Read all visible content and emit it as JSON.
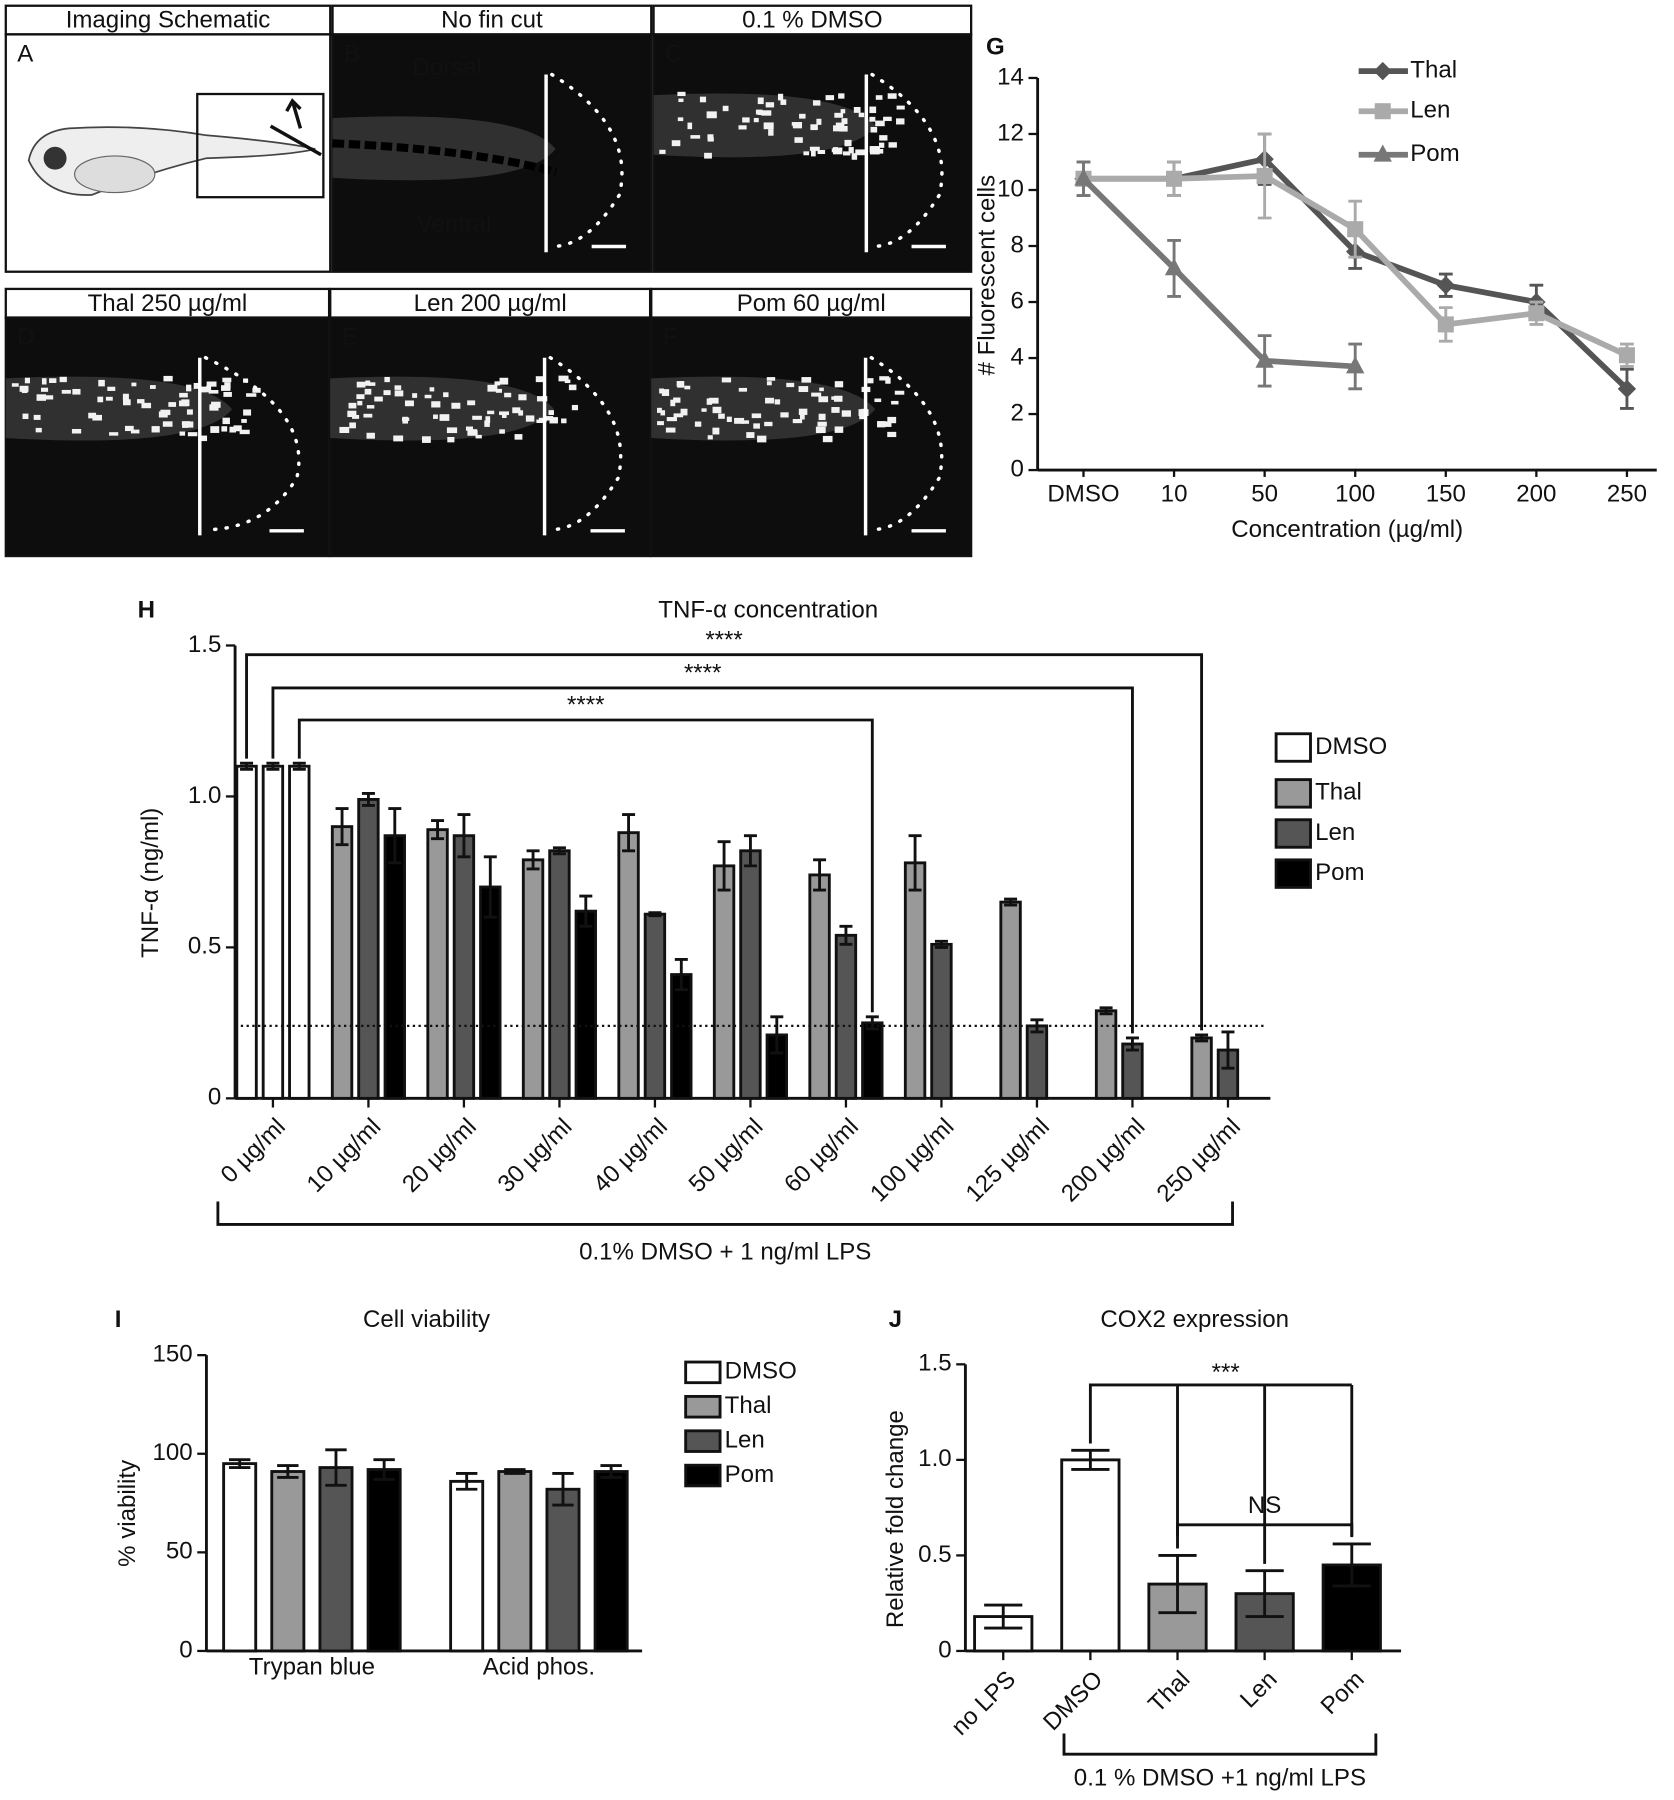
{
  "image_panels": [
    {
      "letter": "A",
      "title": "Imaging Schematic"
    },
    {
      "letter": "B",
      "title": "No fin cut",
      "labels": [
        "Dorsal",
        "Ventral"
      ]
    },
    {
      "letter": "C",
      "title": "0.1 % DMSO"
    },
    {
      "letter": "D",
      "title": "Thal 250 µg/ml"
    },
    {
      "letter": "E",
      "title": "Len 200 µg/ml"
    },
    {
      "letter": "F",
      "title": "Pom 60 µg/ml"
    }
  ],
  "chart_data": [
    {
      "type": "line",
      "panel": "G",
      "xlabel": "Concentration (µg/ml)",
      "ylabel": "# Fluorescent cells",
      "categories": [
        "DMSO",
        "10",
        "50",
        "100",
        "150",
        "200",
        "250"
      ],
      "ylim": [
        0,
        14
      ],
      "yticks": [
        0,
        2,
        4,
        6,
        8,
        10,
        12,
        14
      ],
      "series": [
        {
          "name": "Thal",
          "color": "#555555",
          "marker": "diamond",
          "values": [
            10.4,
            10.4,
            11.1,
            7.8,
            6.6,
            6.0,
            2.9
          ],
          "errors": [
            0.6,
            0.6,
            0.9,
            0.6,
            0.4,
            0.6,
            0.7
          ]
        },
        {
          "name": "Len",
          "color": "#aaaaaa",
          "marker": "square",
          "values": [
            10.4,
            10.4,
            10.5,
            8.6,
            5.2,
            5.6,
            4.1
          ],
          "errors": [
            0.6,
            0.6,
            1.5,
            1.0,
            0.6,
            0.4,
            0.4
          ]
        },
        {
          "name": "Pom",
          "color": "#777777",
          "marker": "triangle",
          "values": [
            10.4,
            7.2,
            3.9,
            3.7,
            null,
            null,
            null
          ],
          "errors": [
            0.6,
            1.0,
            0.9,
            0.8,
            null,
            null,
            null
          ]
        }
      ]
    },
    {
      "type": "bar",
      "panel": "H",
      "title": "TNF-α concentration",
      "ylabel": "TNF-α (ng/ml)",
      "categories": [
        "0 µg/ml",
        "10 µg/ml",
        "20 µg/ml",
        "30 µg/ml",
        "40 µg/ml",
        "50 µg/ml",
        "60 µg/ml",
        "100 µg/ml",
        "125 µg/ml",
        "200 µg/ml",
        "250 µg/ml"
      ],
      "group_label": "0.1% DMSO + 1 ng/ml LPS",
      "ylim": [
        0,
        1.5
      ],
      "yticks": [
        0,
        0.5,
        {
          "value": 1,
          "label": "1.0"
        },
        1.5
      ],
      "reference_line": 0.24,
      "comparisons": [
        {
          "label": "****"
        },
        {
          "label": "****"
        },
        {
          "label": "****"
        }
      ],
      "series": [
        {
          "name": "DMSO",
          "color": "#ffffff",
          "values": [
            1.1,
            null,
            null,
            null,
            null,
            null,
            null,
            null,
            null,
            null,
            null
          ],
          "errors": [
            0.01,
            null,
            null,
            null,
            null,
            null,
            null,
            null,
            null,
            null,
            null
          ]
        },
        {
          "name": "Thal",
          "color": "#999999",
          "values": [
            null,
            0.9,
            0.89,
            0.79,
            0.88,
            0.77,
            0.74,
            0.78,
            0.65,
            0.29,
            0.2
          ],
          "errors": [
            null,
            0.06,
            0.03,
            0.03,
            0.06,
            0.08,
            0.05,
            0.09,
            0.01,
            0.01,
            0.01
          ]
        },
        {
          "name": "Len",
          "color": "#555555",
          "values": [
            null,
            0.99,
            0.87,
            0.82,
            0.61,
            0.82,
            0.54,
            0.51,
            0.24,
            0.18,
            0.16
          ],
          "errors": [
            null,
            0.02,
            0.07,
            0.01,
            0.005,
            0.05,
            0.03,
            0.01,
            0.02,
            0.02,
            0.06
          ]
        },
        {
          "name": "Pom",
          "color": "#000000",
          "values": [
            null,
            0.87,
            0.7,
            0.62,
            0.41,
            0.21,
            0.25,
            null,
            null,
            null,
            null
          ],
          "errors": [
            null,
            0.09,
            0.1,
            0.05,
            0.05,
            0.06,
            0.02,
            null,
            null,
            null,
            null
          ]
        }
      ]
    },
    {
      "type": "bar",
      "panel": "I",
      "title": "Cell viability",
      "ylabel": "% viability",
      "categories": [
        "Trypan blue",
        "Acid phos."
      ],
      "ylim": [
        0,
        150
      ],
      "yticks": [
        0,
        50,
        100,
        150
      ],
      "series": [
        {
          "name": "DMSO",
          "color": "#ffffff",
          "values": [
            95,
            86
          ],
          "errors": [
            2,
            4
          ]
        },
        {
          "name": "Thal",
          "color": "#999999",
          "values": [
            91,
            91
          ],
          "errors": [
            3,
            1
          ]
        },
        {
          "name": "Len",
          "color": "#555555",
          "values": [
            93,
            82
          ],
          "errors": [
            9,
            8
          ]
        },
        {
          "name": "Pom",
          "color": "#000000",
          "values": [
            92,
            91
          ],
          "errors": [
            5,
            3
          ]
        }
      ]
    },
    {
      "type": "bar",
      "panel": "J",
      "title": "COX2 expression",
      "ylabel": "Relative fold change",
      "categories": [
        "no LPS",
        "DMSO",
        "Thal",
        "Len",
        "Pom"
      ],
      "values": [
        0.18,
        1.0,
        0.35,
        0.3,
        0.45
      ],
      "errors": [
        0.06,
        0.05,
        0.15,
        0.12,
        0.11
      ],
      "colors": [
        "#ffffff",
        "#ffffff",
        "#999999",
        "#555555",
        "#000000"
      ],
      "ylim": [
        0,
        1.5
      ],
      "yticks": [
        0,
        0.5,
        {
          "value": 1,
          "label": "1.0"
        },
        1.5
      ],
      "group_label": "0.1 % DMSO +1 ng/ml LPS",
      "comparisons": [
        {
          "label": "***"
        },
        {
          "label": "NS"
        }
      ]
    }
  ]
}
